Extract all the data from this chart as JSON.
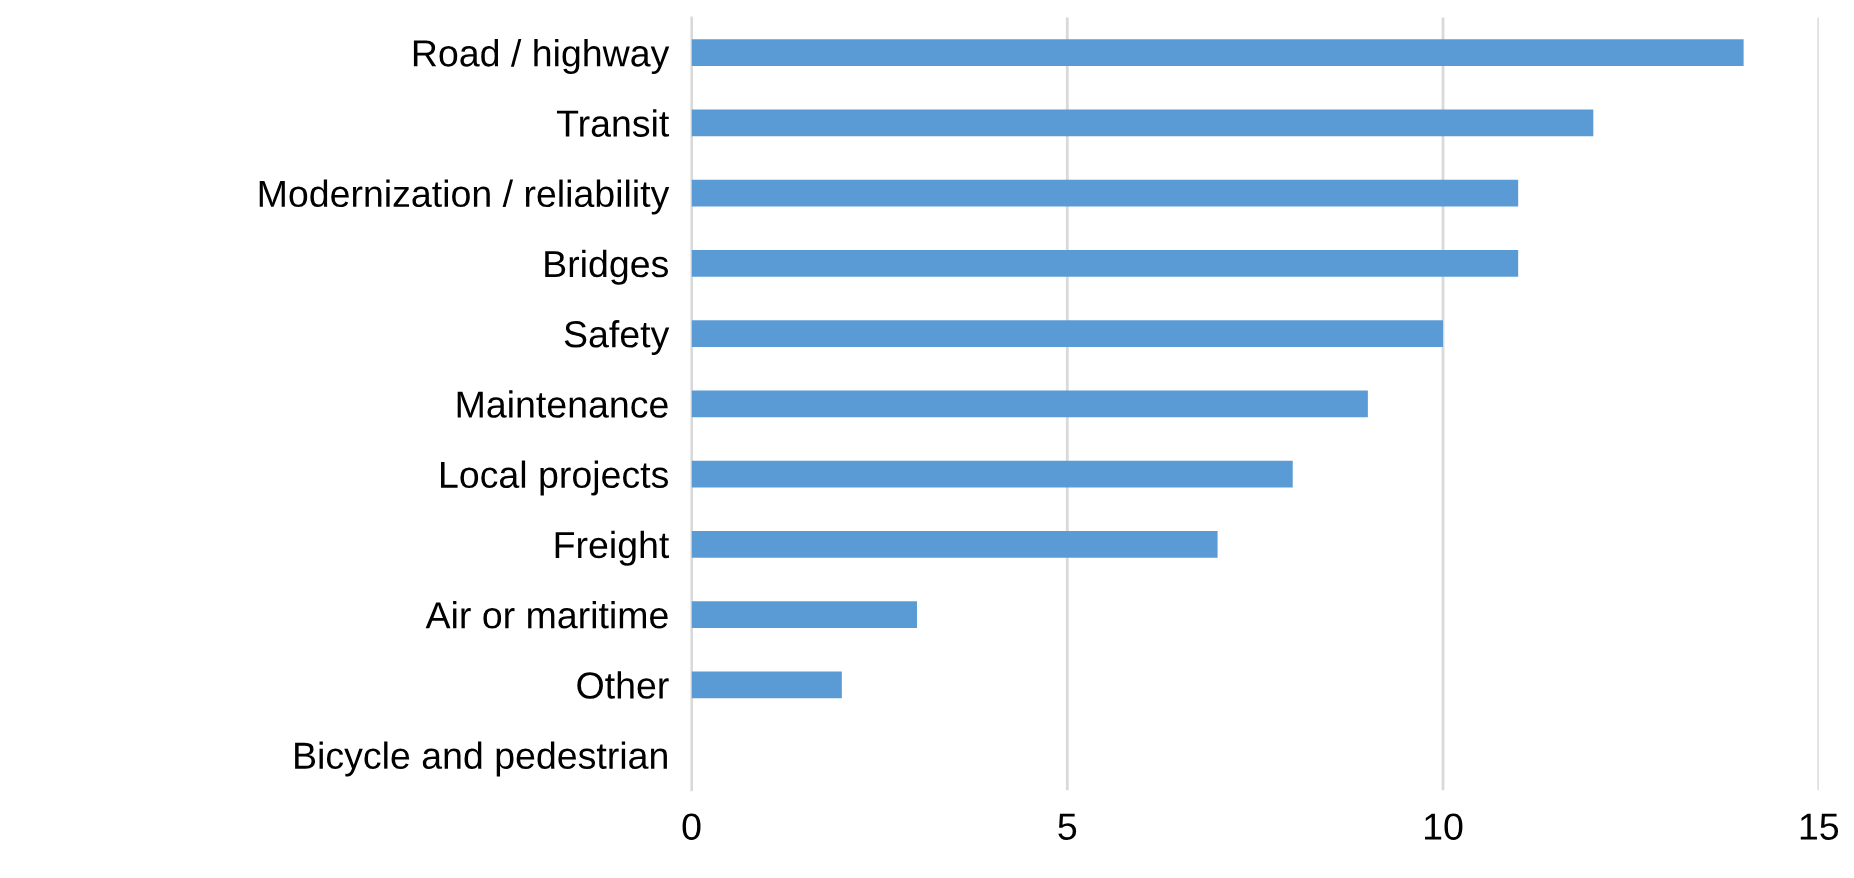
{
  "chart_data": {
    "type": "bar",
    "orientation": "horizontal",
    "categories": [
      "Road / highway",
      "Transit",
      "Modernization / reliability",
      "Bridges",
      "Safety",
      "Maintenance",
      "Local projects",
      "Freight",
      "Air or maritime",
      "Other",
      "Bicycle and pedestrian"
    ],
    "values": [
      14,
      12,
      11,
      11,
      10,
      9,
      8,
      7,
      3,
      2,
      0
    ],
    "color": "#5b9bd5",
    "xlim": [
      0,
      15
    ],
    "xticks": [
      0,
      5,
      10,
      15
    ],
    "grid": "x",
    "legend": false
  }
}
